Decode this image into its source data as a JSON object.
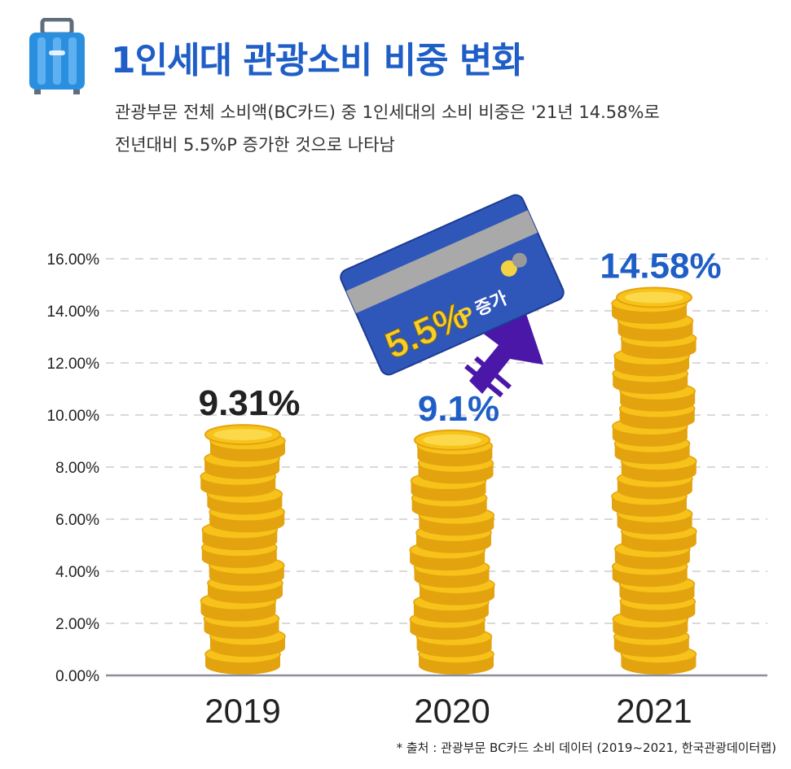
{
  "header": {
    "title": "1인세대 관광소비 비중 변화",
    "subtitle_line1": "관광부문 전체 소비액(BC카드) 중 1인세대의 소비 비중은 '21년 14.58%로",
    "subtitle_line2": "전년대비 5.5%P 증가한 것으로 나타남",
    "icon": "suitcase-icon"
  },
  "callout": {
    "increase_value": "5.5%",
    "increase_unit": "P",
    "increase_word": "증가",
    "icon": "credit-card-icon"
  },
  "footer": {
    "source": "* 출처 : 관광부문 BC카드 소비 데이터 (2019~2021, 한국관광데이터랩)"
  },
  "colors": {
    "title_blue": "#1f5ec7",
    "coin_gold": "#f7c21a",
    "coin_dark": "#e3a30f",
    "card_blue": "#2f56b9",
    "arrow_purple": "#4a17a8",
    "label_dark": "#222222",
    "label_blue": "#1f5ec7"
  },
  "chart_data": {
    "type": "bar",
    "bar_style": "coin-stacks",
    "categories": [
      "2019",
      "2020",
      "2021"
    ],
    "values": [
      9.31,
      9.1,
      14.58
    ],
    "data_labels": [
      "9.31%",
      "9.1%",
      "14.58%"
    ],
    "ylim": [
      0,
      16
    ],
    "yticks": [
      "0.00%",
      "2.00%",
      "4.00%",
      "6.00%",
      "8.00%",
      "10.00%",
      "12.00%",
      "14.00%",
      "16.00%"
    ],
    "grid": true,
    "legend": "none"
  }
}
